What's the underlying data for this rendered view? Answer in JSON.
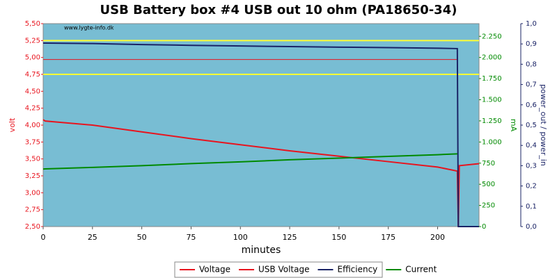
{
  "chart_data": {
    "type": "line",
    "title": "USB Battery box #4 USB out 10 ohm (PA18650-34)",
    "watermark": "www.lygte-info.dk",
    "xlabel": "minutes",
    "ylabel": "volt",
    "y2label": "mA",
    "y3label": "power_out / power_in",
    "xlim": [
      0,
      221
    ],
    "xticks": [
      0,
      25,
      50,
      75,
      100,
      125,
      150,
      175,
      200
    ],
    "ylim": [
      2.5,
      5.5
    ],
    "yticks": [
      {
        "value": 2.5,
        "label": "2,50"
      },
      {
        "value": 2.75,
        "label": "2,75"
      },
      {
        "value": 3,
        "label": "3,00"
      },
      {
        "value": 3.25,
        "label": "3,25"
      },
      {
        "value": 3.5,
        "label": "3,50"
      },
      {
        "value": 3.75,
        "label": "3,75"
      },
      {
        "value": 4,
        "label": "4,00"
      },
      {
        "value": 4.25,
        "label": "4,25"
      },
      {
        "value": 4.5,
        "label": "4,50"
      },
      {
        "value": 4.75,
        "label": "4,75"
      },
      {
        "value": 5,
        "label": "5,00"
      },
      {
        "value": 5.25,
        "label": "5,25"
      },
      {
        "value": 5.5,
        "label": "5,50"
      }
    ],
    "y2lim": [
      0,
      2400
    ],
    "y2ticks": [
      0,
      250,
      500,
      750,
      {
        "value": 1000,
        "label": "1.000"
      },
      {
        "value": 1250,
        "label": "1.250"
      },
      {
        "value": 1500,
        "label": "1.500"
      },
      {
        "value": 1750,
        "label": "1.750"
      },
      {
        "value": 2000,
        "label": "2.000"
      },
      {
        "value": 2250,
        "label": "2.250"
      }
    ],
    "y3lim": [
      0,
      1
    ],
    "y3ticks": [
      {
        "value": 0,
        "label": "0,0"
      },
      {
        "value": 0.1,
        "label": "0,1"
      },
      {
        "value": 0.2,
        "label": "0,2"
      },
      {
        "value": 0.3,
        "label": "0,3"
      },
      {
        "value": 0.4,
        "label": "0,4"
      },
      {
        "value": 0.5,
        "label": "0,5"
      },
      {
        "value": 0.6,
        "label": "0,6"
      },
      {
        "value": 0.7,
        "label": "0,7"
      },
      {
        "value": 0.8,
        "label": "0,8"
      },
      {
        "value": 0.9,
        "label": "0,9"
      },
      {
        "value": 1,
        "label": "1,0"
      }
    ],
    "grid": false,
    "reference_lines": [
      4.75,
      5.25
    ],
    "reference_color": "#ffff33",
    "x": [
      0,
      1,
      25,
      50,
      75,
      100,
      125,
      150,
      175,
      200,
      210,
      210.5,
      211,
      221
    ],
    "series": [
      {
        "name": "Voltage",
        "color": "#e8141e",
        "axis": "y",
        "values": [
          4.08,
          4.06,
          4.0,
          3.9,
          3.8,
          3.71,
          3.62,
          3.54,
          3.46,
          3.38,
          3.32,
          2.5,
          3.4,
          3.43
        ]
      },
      {
        "name": "USB Voltage",
        "color": "#e8141e",
        "axis": "y",
        "values": [
          4.97,
          4.97,
          4.97,
          4.97,
          4.97,
          4.97,
          4.97,
          4.97,
          4.97,
          4.97,
          4.97,
          2.5,
          2.5,
          2.5
        ]
      },
      {
        "name": "Efficiency",
        "color": "#1a2366",
        "axis": "y3",
        "values": [
          0.904,
          0.904,
          0.902,
          0.897,
          0.893,
          0.89,
          0.887,
          0.884,
          0.882,
          0.879,
          0.877,
          0,
          0,
          0
        ]
      },
      {
        "name": "Current",
        "color": "#008a00",
        "axis": "y2",
        "values": [
          680,
          682,
          700,
          720,
          745,
          765,
          790,
          810,
          830,
          850,
          860,
          null,
          null,
          null
        ]
      }
    ]
  }
}
